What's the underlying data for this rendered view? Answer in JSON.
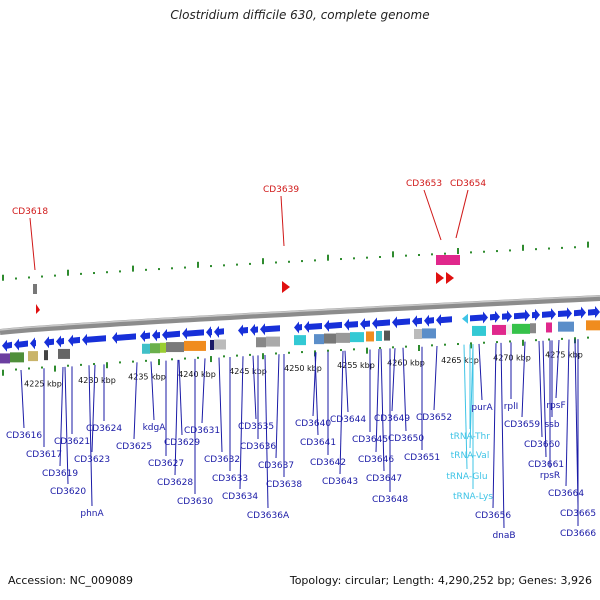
{
  "title": "Clostridium difficile 630, complete genome",
  "footer": {
    "accession": "Accession: NC_009089",
    "topology": "Topology: circular; Length: 4,290,252 bp; Genes: 3,926"
  },
  "colors": {
    "background": "#ffffff",
    "backbone": "#8c8c8c",
    "gene_arrow": "#1730d9",
    "gene_label": "#1a1aa6",
    "trna_label": "#3fc4e6",
    "top_label": "#d01818",
    "tick": "#2e8b2e"
  },
  "scale_labels": [
    "4225 kbp",
    "4230 kbp",
    "4235 kbp",
    "4240 kbp",
    "4245 kbp",
    "4250 kbp",
    "4255 kbp",
    "4260 kbp",
    "4265 kbp",
    "4270 kbp",
    "4275 kbp"
  ],
  "top_labels": [
    "CD3618",
    "CD3639",
    "CD3653",
    "CD3654"
  ],
  "gene_labels": [
    "CD3616",
    "CD3617",
    "CD3619",
    "CD3620",
    "CD3621",
    "CD3623",
    "phnA",
    "CD3624",
    "CD3625",
    "kdgA",
    "CD3627",
    "CD3628",
    "CD3629",
    "CD3630",
    "CD3631",
    "CD3632",
    "CD3633",
    "CD3634",
    "CD3635",
    "CD3636",
    "CD3637",
    "CD3636A",
    "CD3638",
    "CD3640",
    "CD3641",
    "CD3642",
    "CD3643",
    "CD3644",
    "CD3645",
    "CD3646",
    "CD3647",
    "CD3648",
    "CD3649",
    "CD3650",
    "CD3651",
    "CD3652",
    "purA",
    "tRNA-Thr",
    "tRNA-Val",
    "tRNA-Glu",
    "tRNA-Lys",
    "CD3656",
    "dnaB",
    "rplI",
    "CD3659",
    "CD3660",
    "ssb",
    "rpsF",
    "CD3661",
    "rpsR",
    "CD3664",
    "CD3665",
    "CD3666"
  ]
}
